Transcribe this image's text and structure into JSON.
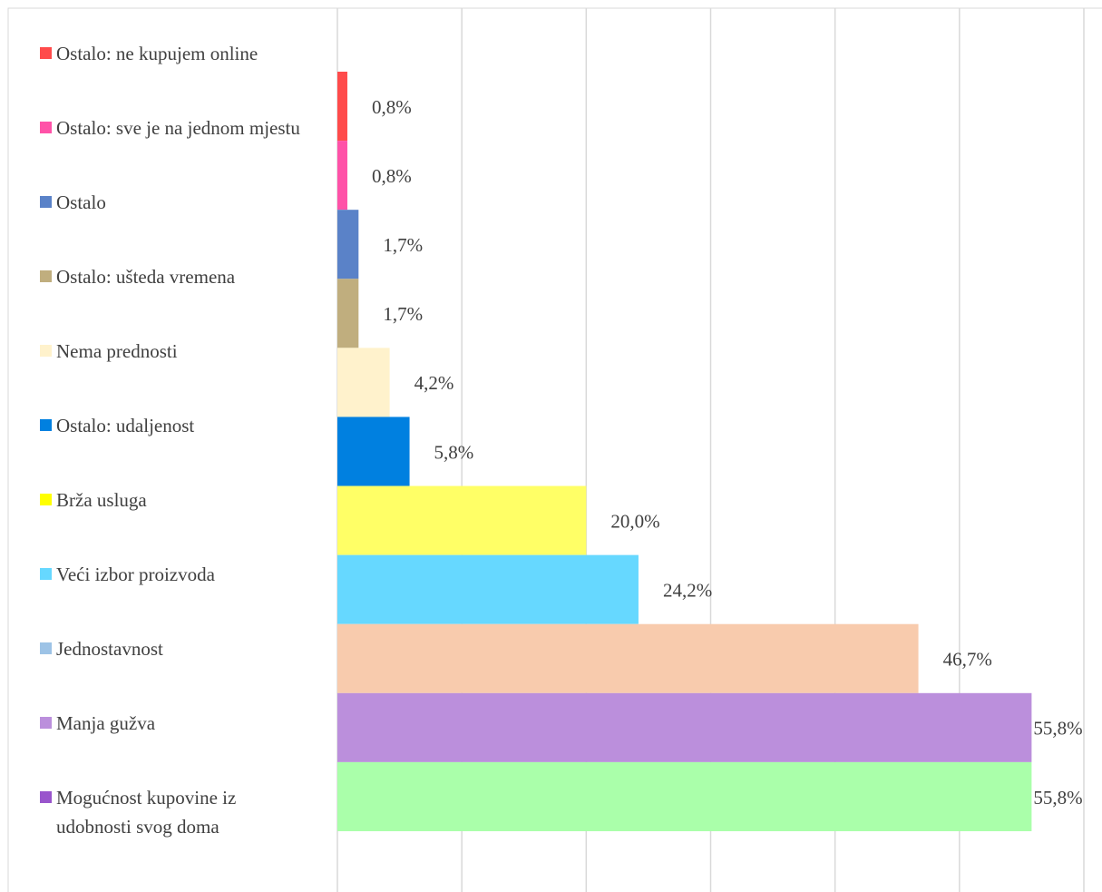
{
  "chart_data": {
    "type": "bar",
    "orientation": "horizontal",
    "categories": [
      "Ostalo: ne kupujem online",
      "Ostalo: sve je na jednom mjestu",
      "Ostalo",
      "Ostalo: ušteda vremena",
      "Nema prednosti",
      "Ostalo: udaljenost",
      "Brža usluga",
      "Veći izbor proizvoda",
      "Jednostavnost",
      "Manja gužva",
      "Mogućnost kupovine iz udobnosti svog doma"
    ],
    "values": [
      0.8,
      0.8,
      1.7,
      1.7,
      4.2,
      5.8,
      20.0,
      24.2,
      46.7,
      55.8,
      55.8
    ],
    "value_labels": [
      "0,8%",
      "0,8%",
      "1,7%",
      "1,7%",
      "4,2%",
      "5,8%",
      "20,0%",
      "24,2%",
      "46,7%",
      "55,8%",
      "55,8%"
    ],
    "colors": [
      "#ff4b4b",
      "#ff52a8",
      "#5a82c8",
      "#c0ae7e",
      "#fff2cc",
      "#0080e0",
      "#ffff66",
      "#66d8ff",
      "#f8cbad",
      "#bb8fdc",
      "#aaffaa"
    ],
    "legend_colors": [
      "#ff4b4b",
      "#ff52a8",
      "#5a82c8",
      "#c0ae7e",
      "#fff2cc",
      "#0080e0",
      "#ffff00",
      "#66d8ff",
      "#9dc3e6",
      "#bb8fdc",
      "#9955cc"
    ],
    "xlim": [
      0,
      60
    ],
    "xticks": [
      0,
      10,
      20,
      30,
      40,
      50,
      60
    ],
    "grid": true,
    "legend": "left"
  }
}
